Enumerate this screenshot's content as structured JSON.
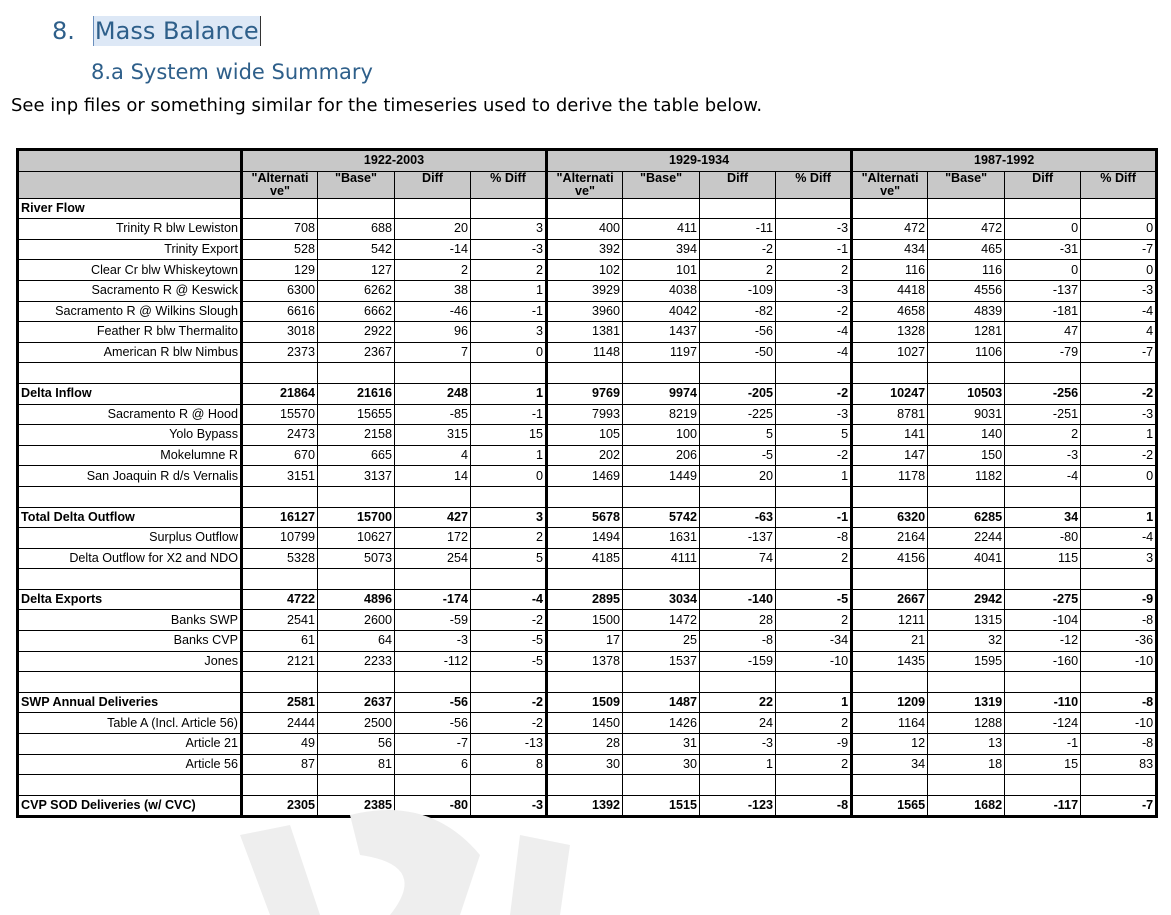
{
  "heading": {
    "number": "8.",
    "title": "Mass Balance"
  },
  "subheading": "8.a System wide Summary",
  "intro": "See inp files or something similar for the timeseries used to derive the table below.",
  "table": {
    "periods": [
      "1922-2003",
      "1929-1934",
      "1987-1992"
    ],
    "columns": [
      "\"Alternati ve\"",
      "\"Base\"",
      "Diff",
      "% Diff"
    ],
    "rows": [
      {
        "label": "River Flow",
        "category": true,
        "values": []
      },
      {
        "label": "Trinity R blw Lewiston",
        "values": [
          "708",
          "688",
          "20",
          "3",
          "400",
          "411",
          "-11",
          "-3",
          "472",
          "472",
          "0",
          "0"
        ]
      },
      {
        "label": "Trinity Export",
        "values": [
          "528",
          "542",
          "-14",
          "-3",
          "392",
          "394",
          "-2",
          "-1",
          "434",
          "465",
          "-31",
          "-7"
        ]
      },
      {
        "label": "Clear Cr blw Whiskeytown",
        "values": [
          "129",
          "127",
          "2",
          "2",
          "102",
          "101",
          "2",
          "2",
          "116",
          "116",
          "0",
          "0"
        ]
      },
      {
        "label": "Sacramento R @ Keswick",
        "values": [
          "6300",
          "6262",
          "38",
          "1",
          "3929",
          "4038",
          "-109",
          "-3",
          "4418",
          "4556",
          "-137",
          "-3"
        ]
      },
      {
        "label": "Sacramento R @ Wilkins Slough",
        "values": [
          "6616",
          "6662",
          "-46",
          "-1",
          "3960",
          "4042",
          "-82",
          "-2",
          "4658",
          "4839",
          "-181",
          "-4"
        ]
      },
      {
        "label": "Feather R blw Thermalito",
        "values": [
          "3018",
          "2922",
          "96",
          "3",
          "1381",
          "1437",
          "-56",
          "-4",
          "1328",
          "1281",
          "47",
          "4"
        ]
      },
      {
        "label": "American R blw Nimbus",
        "values": [
          "2373",
          "2367",
          "7",
          "0",
          "1148",
          "1197",
          "-50",
          "-4",
          "1027",
          "1106",
          "-79",
          "-7"
        ]
      },
      {
        "label": "",
        "spacer": true,
        "values": []
      },
      {
        "label": "Delta Inflow",
        "category": true,
        "values": [
          "21864",
          "21616",
          "248",
          "1",
          "9769",
          "9974",
          "-205",
          "-2",
          "10247",
          "10503",
          "-256",
          "-2"
        ]
      },
      {
        "label": "Sacramento R @ Hood",
        "values": [
          "15570",
          "15655",
          "-85",
          "-1",
          "7993",
          "8219",
          "-225",
          "-3",
          "8781",
          "9031",
          "-251",
          "-3"
        ]
      },
      {
        "label": "Yolo Bypass",
        "values": [
          "2473",
          "2158",
          "315",
          "15",
          "105",
          "100",
          "5",
          "5",
          "141",
          "140",
          "2",
          "1"
        ]
      },
      {
        "label": "Mokelumne R",
        "values": [
          "670",
          "665",
          "4",
          "1",
          "202",
          "206",
          "-5",
          "-2",
          "147",
          "150",
          "-3",
          "-2"
        ]
      },
      {
        "label": "San Joaquin R d/s Vernalis",
        "values": [
          "3151",
          "3137",
          "14",
          "0",
          "1469",
          "1449",
          "20",
          "1",
          "1178",
          "1182",
          "-4",
          "0"
        ]
      },
      {
        "label": "",
        "spacer": true,
        "values": []
      },
      {
        "label": "Total Delta Outflow",
        "category": true,
        "values": [
          "16127",
          "15700",
          "427",
          "3",
          "5678",
          "5742",
          "-63",
          "-1",
          "6320",
          "6285",
          "34",
          "1"
        ]
      },
      {
        "label": "Surplus Outflow",
        "values": [
          "10799",
          "10627",
          "172",
          "2",
          "1494",
          "1631",
          "-137",
          "-8",
          "2164",
          "2244",
          "-80",
          "-4"
        ]
      },
      {
        "label": "Delta Outflow for X2 and NDO",
        "values": [
          "5328",
          "5073",
          "254",
          "5",
          "4185",
          "4111",
          "74",
          "2",
          "4156",
          "4041",
          "115",
          "3"
        ]
      },
      {
        "label": "",
        "spacer": true,
        "values": []
      },
      {
        "label": "Delta Exports",
        "category": true,
        "values": [
          "4722",
          "4896",
          "-174",
          "-4",
          "2895",
          "3034",
          "-140",
          "-5",
          "2667",
          "2942",
          "-275",
          "-9"
        ]
      },
      {
        "label": "Banks SWP",
        "values": [
          "2541",
          "2600",
          "-59",
          "-2",
          "1500",
          "1472",
          "28",
          "2",
          "1211",
          "1315",
          "-104",
          "-8"
        ]
      },
      {
        "label": "Banks CVP",
        "values": [
          "61",
          "64",
          "-3",
          "-5",
          "17",
          "25",
          "-8",
          "-34",
          "21",
          "32",
          "-12",
          "-36"
        ]
      },
      {
        "label": "Jones",
        "values": [
          "2121",
          "2233",
          "-112",
          "-5",
          "1378",
          "1537",
          "-159",
          "-10",
          "1435",
          "1595",
          "-160",
          "-10"
        ]
      },
      {
        "label": "",
        "spacer": true,
        "values": []
      },
      {
        "label": "SWP Annual Deliveries",
        "category": true,
        "values": [
          "2581",
          "2637",
          "-56",
          "-2",
          "1509",
          "1487",
          "22",
          "1",
          "1209",
          "1319",
          "-110",
          "-8"
        ]
      },
      {
        "label": "Table A (Incl. Article 56)",
        "values": [
          "2444",
          "2500",
          "-56",
          "-2",
          "1450",
          "1426",
          "24",
          "2",
          "1164",
          "1288",
          "-124",
          "-10"
        ]
      },
      {
        "label": "Article 21",
        "values": [
          "49",
          "56",
          "-7",
          "-13",
          "28",
          "31",
          "-3",
          "-9",
          "12",
          "13",
          "-1",
          "-8"
        ]
      },
      {
        "label": "Article 56",
        "values": [
          "87",
          "81",
          "6",
          "8",
          "30",
          "30",
          "1",
          "2",
          "34",
          "18",
          "15",
          "83"
        ]
      },
      {
        "label": "",
        "spacer": true,
        "values": []
      },
      {
        "label": "CVP SOD Deliveries (w/ CVC)",
        "category": true,
        "values": [
          "2305",
          "2385",
          "-80",
          "-3",
          "1392",
          "1515",
          "-123",
          "-8",
          "1565",
          "1682",
          "-117",
          "-7"
        ]
      }
    ]
  }
}
